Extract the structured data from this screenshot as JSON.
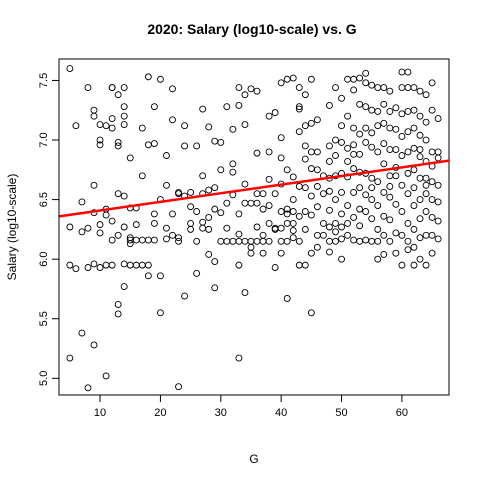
{
  "chart_data": {
    "type": "scatter",
    "title": "2020: Salary (log10-scale) vs. G",
    "xlabel": "G",
    "ylabel": "Salary (log10-scale)",
    "xlim": [
      3.2,
      67.8
    ],
    "ylim": [
      4.86,
      7.68
    ],
    "x_ticks": [
      10,
      20,
      30,
      40,
      50,
      60
    ],
    "y_ticks": [
      5.0,
      5.5,
      6.0,
      6.5,
      7.0,
      7.5
    ],
    "x_tick_labels": [
      "10",
      "20",
      "30",
      "40",
      "50",
      "60"
    ],
    "y_tick_labels": [
      "5.0",
      "5.5",
      "6.0",
      "6.5",
      "7.0",
      "7.5"
    ],
    "grid": false,
    "legend": "none",
    "point_color": "#000000",
    "fit_line": {
      "color": "#ff0000",
      "intercept": 6.336,
      "slope": 0.00724
    },
    "points": [
      [
        5,
        7.6
      ],
      [
        5,
        6.27
      ],
      [
        5,
        5.95
      ],
      [
        5,
        5.17
      ],
      [
        6,
        5.92
      ],
      [
        6,
        7.12
      ],
      [
        7,
        6.48
      ],
      [
        7,
        6.23
      ],
      [
        7,
        5.38
      ],
      [
        8,
        7.44
      ],
      [
        8,
        6.26
      ],
      [
        8,
        5.93
      ],
      [
        8,
        4.92
      ],
      [
        9,
        7.2
      ],
      [
        9,
        6.62
      ],
      [
        9,
        6.39
      ],
      [
        9,
        5.96
      ],
      [
        9,
        5.28
      ],
      [
        9,
        7.25
      ],
      [
        10,
        7.13
      ],
      [
        10,
        6.96
      ],
      [
        10,
        6.29
      ],
      [
        10,
        5.93
      ],
      [
        10,
        7.0
      ],
      [
        11,
        7.12
      ],
      [
        11,
        6.37
      ],
      [
        11,
        5.95
      ],
      [
        11,
        5.02
      ],
      [
        12,
        7.44
      ],
      [
        12,
        7.44
      ],
      [
        12,
        7.18
      ],
      [
        12,
        7.1
      ],
      [
        12,
        6.32
      ],
      [
        12,
        6.16
      ],
      [
        12,
        5.95
      ],
      [
        13,
        7.38
      ],
      [
        13,
        6.98
      ],
      [
        13,
        6.95
      ],
      [
        13,
        6.55
      ],
      [
        13,
        6.2
      ],
      [
        13,
        5.62
      ],
      [
        13,
        5.54
      ],
      [
        14,
        7.28
      ],
      [
        14,
        7.44
      ],
      [
        14,
        7.13
      ],
      [
        14,
        6.53
      ],
      [
        14,
        6.27
      ],
      [
        14,
        5.96
      ],
      [
        14,
        5.77
      ],
      [
        14,
        7.2
      ],
      [
        15,
        6.43
      ],
      [
        15,
        6.16
      ],
      [
        15,
        6.13
      ],
      [
        15,
        5.95
      ],
      [
        15,
        6.85
      ],
      [
        16,
        6.29
      ],
      [
        16,
        6.16
      ],
      [
        16,
        5.95
      ],
      [
        16,
        6.43
      ],
      [
        17,
        6.16
      ],
      [
        17,
        5.95
      ],
      [
        17,
        7.1
      ],
      [
        18,
        6.96
      ],
      [
        18,
        6.16
      ],
      [
        18,
        5.95
      ],
      [
        18,
        5.86
      ],
      [
        18,
        7.53
      ],
      [
        19,
        7.28
      ],
      [
        19,
        6.97
      ],
      [
        19,
        6.38
      ],
      [
        19,
        6.16
      ],
      [
        20,
        7.51
      ],
      [
        20,
        6.5
      ],
      [
        20,
        5.55
      ],
      [
        20,
        5.86
      ],
      [
        21,
        6.87
      ],
      [
        21,
        6.26
      ],
      [
        21,
        6.17
      ],
      [
        22,
        7.43
      ],
      [
        22,
        6.38
      ],
      [
        22,
        6.2
      ],
      [
        22,
        7.17
      ],
      [
        23,
        6.55
      ],
      [
        23,
        6.18
      ],
      [
        23,
        4.93
      ],
      [
        23,
        6.56
      ],
      [
        23,
        6.15
      ],
      [
        24,
        7.12
      ],
      [
        24,
        6.53
      ],
      [
        24,
        5.69
      ],
      [
        24,
        6.95
      ],
      [
        25,
        6.44
      ],
      [
        25,
        6.3
      ],
      [
        25,
        6.25
      ],
      [
        25,
        6.56
      ],
      [
        26,
        6.4
      ],
      [
        26,
        6.15
      ],
      [
        26,
        5.88
      ],
      [
        27,
        6.55
      ],
      [
        27,
        6.31
      ],
      [
        27,
        6.26
      ],
      [
        27,
        7.26
      ],
      [
        28,
        6.58
      ],
      [
        28,
        6.35
      ],
      [
        28,
        6.04
      ],
      [
        28,
        6.25
      ],
      [
        28,
        7.11
      ],
      [
        29,
        6.6
      ],
      [
        29,
        6.42
      ],
      [
        29,
        6.99
      ],
      [
        29,
        5.76
      ],
      [
        29,
        5.98
      ],
      [
        30,
        6.39
      ],
      [
        30,
        6.15
      ],
      [
        30,
        6.98
      ],
      [
        31,
        7.28
      ],
      [
        31,
        6.47
      ],
      [
        31,
        6.15
      ],
      [
        31,
        6.26
      ],
      [
        32,
        7.09
      ],
      [
        32,
        6.8
      ],
      [
        32,
        6.73
      ],
      [
        32,
        6.54
      ],
      [
        32,
        6.15
      ],
      [
        33,
        7.44
      ],
      [
        33,
        7.29
      ],
      [
        33,
        6.38
      ],
      [
        33,
        6.15
      ],
      [
        33,
        5.95
      ],
      [
        33,
        5.17
      ],
      [
        33,
        6.21
      ],
      [
        34,
        7.13
      ],
      [
        34,
        6.63
      ],
      [
        34,
        6.47
      ],
      [
        34,
        6.15
      ],
      [
        34,
        5.72
      ],
      [
        34,
        7.38
      ],
      [
        35,
        7.43
      ],
      [
        35,
        6.47
      ],
      [
        35,
        6.15
      ],
      [
        35,
        6.05
      ],
      [
        35,
        6.1
      ],
      [
        36,
        7.41
      ],
      [
        36,
        6.89
      ],
      [
        36,
        6.47
      ],
      [
        36,
        6.15
      ],
      [
        36,
        6.27
      ],
      [
        37,
        6.42
      ],
      [
        37,
        6.15
      ],
      [
        37,
        6.05
      ],
      [
        37,
        6.2
      ],
      [
        37,
        6.55
      ],
      [
        38,
        7.2
      ],
      [
        38,
        6.9
      ],
      [
        38,
        6.67
      ],
      [
        38,
        6.3
      ],
      [
        38,
        6.15
      ],
      [
        39,
        7.23
      ],
      [
        39,
        6.55
      ],
      [
        39,
        6.25
      ],
      [
        39,
        5.93
      ],
      [
        39,
        6.26
      ],
      [
        40,
        7.48
      ],
      [
        40,
        7.02
      ],
      [
        40,
        6.63
      ],
      [
        40,
        6.4
      ],
      [
        40,
        6.26
      ],
      [
        40,
        6.15
      ],
      [
        40,
        6.05
      ],
      [
        40,
        6.85
      ],
      [
        41,
        7.51
      ],
      [
        41,
        6.75
      ],
      [
        41,
        6.42
      ],
      [
        41,
        6.3
      ],
      [
        41,
        6.15
      ],
      [
        41,
        5.67
      ],
      [
        41,
        6.38
      ],
      [
        42,
        7.52
      ],
      [
        42,
        6.69
      ],
      [
        42,
        6.4
      ],
      [
        42,
        6.3
      ],
      [
        42,
        6.18
      ],
      [
        42,
        6.24
      ],
      [
        43,
        7.44
      ],
      [
        43,
        7.28
      ],
      [
        43,
        7.26
      ],
      [
        43,
        7.07
      ],
      [
        43,
        6.36
      ],
      [
        43,
        6.15
      ],
      [
        43,
        5.95
      ],
      [
        43,
        6.61
      ],
      [
        44,
        7.38
      ],
      [
        44,
        7.12
      ],
      [
        44,
        6.84
      ],
      [
        44,
        6.6
      ],
      [
        44,
        6.4
      ],
      [
        44,
        6.25
      ],
      [
        44,
        5.95
      ],
      [
        45,
        7.51
      ],
      [
        45,
        7.14
      ],
      [
        45,
        6.9
      ],
      [
        45,
        6.76
      ],
      [
        45,
        6.37
      ],
      [
        45,
        6.05
      ],
      [
        45,
        5.55
      ],
      [
        45,
        6.53
      ],
      [
        46,
        7.17
      ],
      [
        46,
        6.61
      ],
      [
        46,
        6.44
      ],
      [
        46,
        6.2
      ],
      [
        46,
        6.1
      ],
      [
        46,
        6.75
      ],
      [
        47,
        6.55
      ],
      [
        47,
        6.3
      ],
      [
        47,
        6.2
      ],
      [
        48,
        7.29
      ],
      [
        48,
        6.95
      ],
      [
        48,
        6.82
      ],
      [
        48,
        6.68
      ],
      [
        48,
        6.57
      ],
      [
        48,
        6.41
      ],
      [
        48,
        6.27
      ],
      [
        48,
        6.15
      ],
      [
        48,
        6.06
      ],
      [
        49,
        7.44
      ],
      [
        49,
        7.0
      ],
      [
        49,
        6.7
      ],
      [
        49,
        6.5
      ],
      [
        49,
        6.3
      ],
      [
        49,
        6.23
      ],
      [
        49,
        6.15
      ],
      [
        49,
        6.87
      ],
      [
        50,
        7.35
      ],
      [
        50,
        7.12
      ],
      [
        50,
        6.98
      ],
      [
        50,
        6.72
      ],
      [
        50,
        6.56
      ],
      [
        50,
        6.38
      ],
      [
        50,
        6.27
      ],
      [
        50,
        6.17
      ],
      [
        50,
        6.0
      ],
      [
        51,
        7.51
      ],
      [
        51,
        7.2
      ],
      [
        51,
        6.93
      ],
      [
        51,
        6.69
      ],
      [
        51,
        6.45
      ],
      [
        51,
        6.3
      ],
      [
        51,
        6.2
      ],
      [
        51,
        6.82
      ],
      [
        52,
        7.51
      ],
      [
        52,
        7.42
      ],
      [
        52,
        7.1
      ],
      [
        52,
        6.88
      ],
      [
        52,
        6.76
      ],
      [
        52,
        6.56
      ],
      [
        52,
        6.35
      ],
      [
        52,
        6.16
      ],
      [
        52,
        6.96
      ],
      [
        53,
        7.52
      ],
      [
        53,
        7.3
      ],
      [
        53,
        7.05
      ],
      [
        53,
        6.88
      ],
      [
        53,
        6.6
      ],
      [
        53,
        6.42
      ],
      [
        53,
        6.28
      ],
      [
        53,
        6.15
      ],
      [
        53,
        6.73
      ],
      [
        54,
        7.56
      ],
      [
        54,
        7.48
      ],
      [
        54,
        7.28
      ],
      [
        54,
        7.1
      ],
      [
        54,
        6.98
      ],
      [
        54,
        6.72
      ],
      [
        54,
        6.54
      ],
      [
        54,
        6.4
      ],
      [
        54,
        6.16
      ],
      [
        55,
        7.46
      ],
      [
        55,
        7.25
      ],
      [
        55,
        7.06
      ],
      [
        55,
        6.94
      ],
      [
        55,
        6.68
      ],
      [
        55,
        6.5
      ],
      [
        55,
        6.34
      ],
      [
        55,
        6.15
      ],
      [
        55,
        6.6
      ],
      [
        56,
        7.44
      ],
      [
        56,
        7.24
      ],
      [
        56,
        7.12
      ],
      [
        56,
        6.9
      ],
      [
        56,
        6.65
      ],
      [
        56,
        6.45
      ],
      [
        56,
        6.25
      ],
      [
        56,
        6.15
      ],
      [
        56,
        6.0
      ],
      [
        57,
        7.44
      ],
      [
        57,
        7.3
      ],
      [
        57,
        7.14
      ],
      [
        57,
        6.97
      ],
      [
        57,
        6.8
      ],
      [
        57,
        6.56
      ],
      [
        57,
        6.36
      ],
      [
        57,
        6.2
      ],
      [
        57,
        6.04
      ],
      [
        58,
        7.41
      ],
      [
        58,
        7.24
      ],
      [
        58,
        7.1
      ],
      [
        58,
        6.92
      ],
      [
        58,
        6.7
      ],
      [
        58,
        6.52
      ],
      [
        58,
        6.33
      ],
      [
        58,
        6.15
      ],
      [
        58,
        6.61
      ],
      [
        59,
        7.27
      ],
      [
        59,
        7.09
      ],
      [
        59,
        6.92
      ],
      [
        59,
        6.7
      ],
      [
        59,
        6.46
      ],
      [
        59,
        6.22
      ],
      [
        59,
        6.05
      ],
      [
        59,
        6.77
      ],
      [
        60,
        7.57
      ],
      [
        60,
        7.44
      ],
      [
        60,
        7.22
      ],
      [
        60,
        7.03
      ],
      [
        60,
        6.87
      ],
      [
        60,
        6.62
      ],
      [
        60,
        6.4
      ],
      [
        60,
        6.2
      ],
      [
        60,
        5.95
      ],
      [
        61,
        7.57
      ],
      [
        61,
        7.44
      ],
      [
        61,
        7.24
      ],
      [
        61,
        7.07
      ],
      [
        61,
        6.9
      ],
      [
        61,
        6.72
      ],
      [
        61,
        6.55
      ],
      [
        61,
        6.3
      ],
      [
        61,
        6.15
      ],
      [
        61,
        6.08
      ],
      [
        62,
        7.44
      ],
      [
        62,
        7.25
      ],
      [
        62,
        7.1
      ],
      [
        62,
        6.93
      ],
      [
        62,
        6.75
      ],
      [
        62,
        6.6
      ],
      [
        62,
        6.45
      ],
      [
        62,
        6.25
      ],
      [
        62,
        6.1
      ],
      [
        62,
        5.95
      ],
      [
        63,
        7.41
      ],
      [
        63,
        7.2
      ],
      [
        63,
        7.04
      ],
      [
        63,
        6.86
      ],
      [
        63,
        6.68
      ],
      [
        63,
        6.5
      ],
      [
        63,
        6.34
      ],
      [
        63,
        6.18
      ],
      [
        63,
        6.0
      ],
      [
        63,
        6.92
      ],
      [
        64,
        7.38
      ],
      [
        64,
        7.15
      ],
      [
        64,
        7.0
      ],
      [
        64,
        6.82
      ],
      [
        64,
        6.68
      ],
      [
        64,
        6.55
      ],
      [
        64,
        6.4
      ],
      [
        64,
        6.2
      ],
      [
        64,
        5.95
      ],
      [
        64,
        6.62
      ],
      [
        65,
        7.48
      ],
      [
        65,
        7.25
      ],
      [
        65,
        6.9
      ],
      [
        65,
        6.65
      ],
      [
        65,
        6.5
      ],
      [
        65,
        6.35
      ],
      [
        65,
        6.2
      ],
      [
        65,
        6.05
      ],
      [
        65,
        6.78
      ],
      [
        66,
        7.18
      ],
      [
        66,
        6.9
      ],
      [
        66,
        6.62
      ],
      [
        66,
        6.48
      ],
      [
        66,
        6.32
      ],
      [
        66,
        6.17
      ],
      [
        66,
        6.85
      ],
      [
        38,
        6.45
      ],
      [
        36,
        6.55
      ],
      [
        42,
        6.5
      ],
      [
        47,
        6.7
      ],
      [
        46,
        6.9
      ],
      [
        44,
        6.95
      ],
      [
        30,
        6.75
      ],
      [
        27,
        6.7
      ],
      [
        26,
        6.95
      ],
      [
        21,
        6.62
      ],
      [
        19,
        6.3
      ],
      [
        17,
        6.7
      ],
      [
        15,
        6.18
      ],
      [
        11,
        6.42
      ],
      [
        10,
        6.22
      ]
    ]
  }
}
